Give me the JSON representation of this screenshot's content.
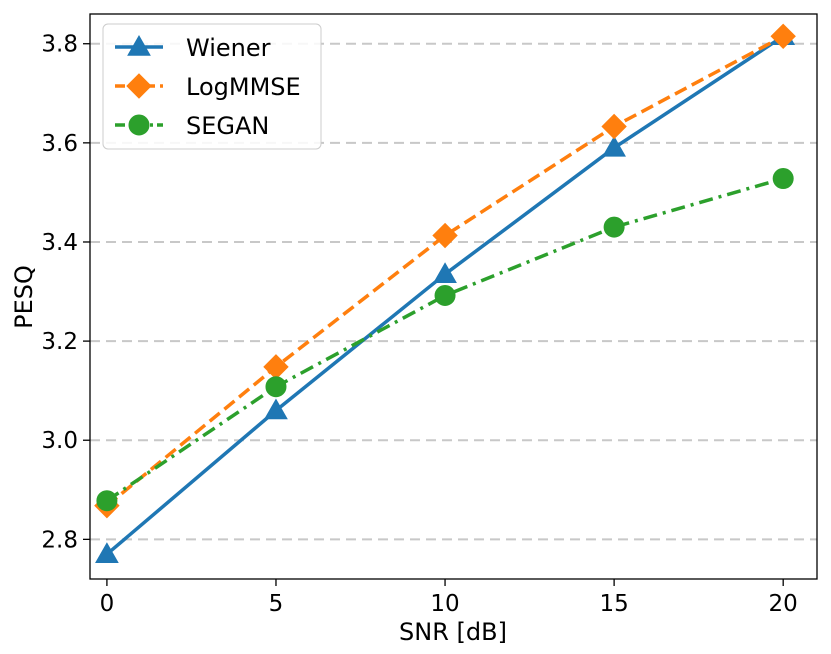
{
  "chart_data": {
    "type": "line",
    "title": "",
    "xlabel": "SNR [dB]",
    "ylabel": "PESQ",
    "x": [
      0,
      5,
      10,
      15,
      20
    ],
    "xlim": [
      -0.5,
      21.0
    ],
    "ylim": [
      2.72,
      3.86
    ],
    "xticks": [
      0,
      5,
      10,
      15,
      20
    ],
    "xtick_labels": [
      "0",
      "5",
      "10",
      "15",
      "20"
    ],
    "yticks": [
      2.8,
      3.0,
      3.2,
      3.4,
      3.6,
      3.8
    ],
    "ytick_labels": [
      "2.8",
      "3.0",
      "3.2",
      "3.4",
      "3.6",
      "3.8"
    ],
    "grid": "horizontal dashed",
    "legend_position": "top-left",
    "series": [
      {
        "name": "Wiener",
        "values": [
          2.77,
          3.06,
          3.335,
          3.59,
          3.815
        ],
        "color": "#1f77b4",
        "linestyle": "solid",
        "marker": "triangle"
      },
      {
        "name": "LogMMSE",
        "values": [
          2.868,
          3.148,
          3.413,
          3.633,
          3.815
        ],
        "color": "#ff7f0e",
        "linestyle": "dashed",
        "marker": "diamond"
      },
      {
        "name": "SEGAN",
        "values": [
          2.878,
          3.108,
          3.292,
          3.43,
          3.528
        ],
        "color": "#2ca02c",
        "linestyle": "dashdot",
        "marker": "circle"
      }
    ]
  }
}
